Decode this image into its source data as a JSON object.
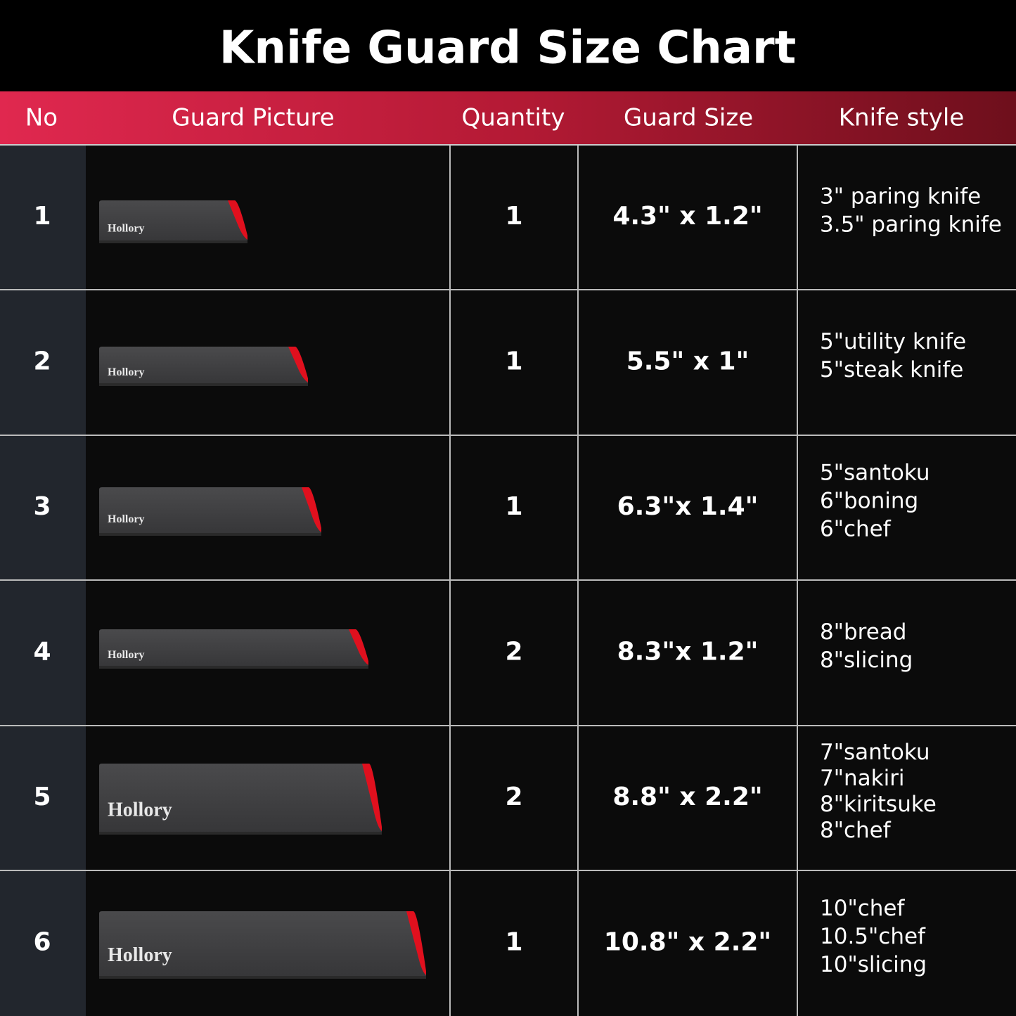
{
  "title": "Knife Guard Size Chart",
  "table": {
    "headers": [
      "No",
      "Guard Picture",
      "Quantity",
      "Guard Size",
      "Knife style"
    ],
    "rows": [
      {
        "no": 1,
        "brand": "Hollory",
        "quantity": 1,
        "size": "4.3\" x 1.2\"",
        "styles": [
          "3\" paring knife",
          "3.5\" paring knife"
        ]
      },
      {
        "no": 2,
        "brand": "Hollory",
        "quantity": 1,
        "size": "5.5\" x 1\"",
        "styles": [
          "5\"utility knife",
          "5\"steak knife"
        ]
      },
      {
        "no": 3,
        "brand": "Hollory",
        "quantity": 1,
        "size": "6.3\"x 1.4\"",
        "styles": [
          "5\"santoku",
          "6\"boning",
          "6\"chef"
        ]
      },
      {
        "no": 4,
        "brand": "Hollory",
        "quantity": 2,
        "size": "8.3\"x 1.2\"",
        "styles": [
          "8\"bread",
          "8\"slicing"
        ]
      },
      {
        "no": 5,
        "brand": "Hollory",
        "quantity": 2,
        "size": "8.8\" x 2.2\"",
        "styles": [
          "7\"santoku",
          "7\"nakiri",
          "8\"kiritsuke",
          "8\"chef"
        ]
      },
      {
        "no": 6,
        "brand": "Hollory",
        "quantity": 1,
        "size": "10.8\" x 2.2\"",
        "styles": [
          "10\"chef",
          "10.5\"chef",
          "10\"slicing"
        ]
      }
    ]
  }
}
